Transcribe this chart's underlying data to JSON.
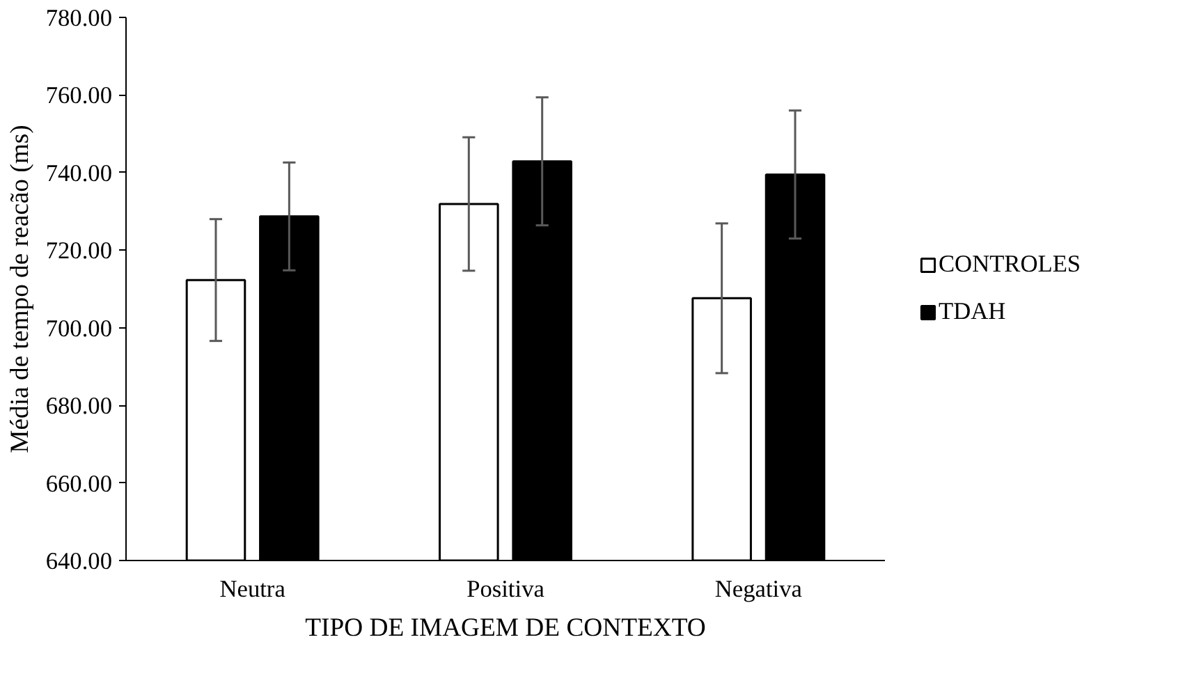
{
  "chart_data": {
    "type": "bar",
    "xlabel": "TIPO DE IMAGEM DE CONTEXTO",
    "ylabel": "Média de tempo de reacão (ms)",
    "categories": [
      "Neutra",
      "Positiva",
      "Negativa"
    ],
    "series": [
      {
        "name": "CONTROLES",
        "color": "#ffffff",
        "values": [
          712.3,
          731.9,
          707.6
        ],
        "errors": [
          15.7,
          17.2,
          19.3
        ]
      },
      {
        "name": "TDAH",
        "color": "#000000",
        "values": [
          728.7,
          742.9,
          739.5
        ],
        "errors": [
          13.9,
          16.5,
          16.5
        ]
      }
    ],
    "ylim": [
      640,
      780
    ],
    "yticks": [
      {
        "value": 640,
        "label": "640.00"
      },
      {
        "value": 660,
        "label": "660.00"
      },
      {
        "value": 680,
        "label": "680.00"
      },
      {
        "value": 700,
        "label": "700.00"
      },
      {
        "value": 720,
        "label": "720.00"
      },
      {
        "value": 740,
        "label": "740.00"
      },
      {
        "value": 760,
        "label": "760.00"
      },
      {
        "value": 780,
        "label": "780.00"
      }
    ],
    "grid": false,
    "legend": "right"
  }
}
